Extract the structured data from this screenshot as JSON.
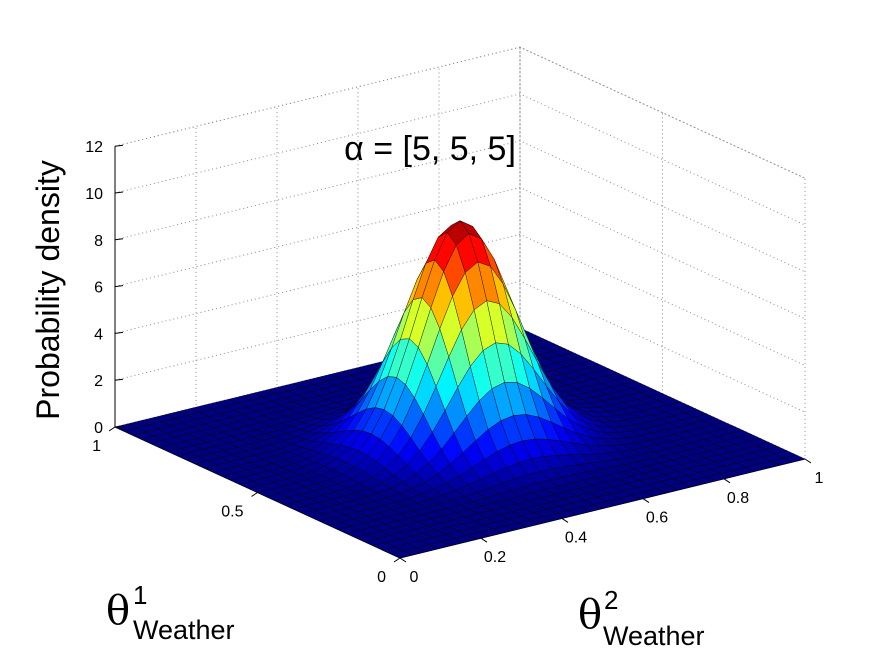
{
  "chart_data": {
    "type": "surface",
    "title": "α = [5, 5, 5]",
    "zlabel": "Probability density",
    "x_axis": {
      "symbol": "θ",
      "superscript": "2",
      "subscript": "Weather"
    },
    "y_axis": {
      "symbol": "θ",
      "superscript": "1",
      "subscript": "Weather"
    },
    "xlim": [
      0,
      1
    ],
    "ylim": [
      0,
      1
    ],
    "zlim": [
      0,
      12
    ],
    "x_ticks": [
      0,
      0.2,
      0.4,
      0.6,
      0.8,
      1
    ],
    "x_tick_labels": [
      "0",
      "0.2",
      "0.4",
      "0.6",
      "0.8",
      "1"
    ],
    "y_ticks": [
      0,
      0.5,
      1
    ],
    "y_tick_labels": [
      "0",
      "0.5",
      "1"
    ],
    "z_ticks": [
      0,
      2,
      4,
      6,
      8,
      10,
      12
    ],
    "z_tick_labels": [
      "0",
      "2",
      "4",
      "6",
      "8",
      "10",
      "12"
    ],
    "grid": true,
    "colormap": "jet",
    "surface": {
      "function": "Dirichlet density over (theta1, theta2, 1 - theta1 - theta2) with alpha = [5, 5, 5]",
      "alpha": [
        5,
        5,
        5
      ],
      "peak_value": 9.5,
      "grid_steps": 32
    },
    "colors": {
      "background": "#ffffff",
      "edge": "#000000",
      "grid": "#8c8c8c"
    }
  }
}
